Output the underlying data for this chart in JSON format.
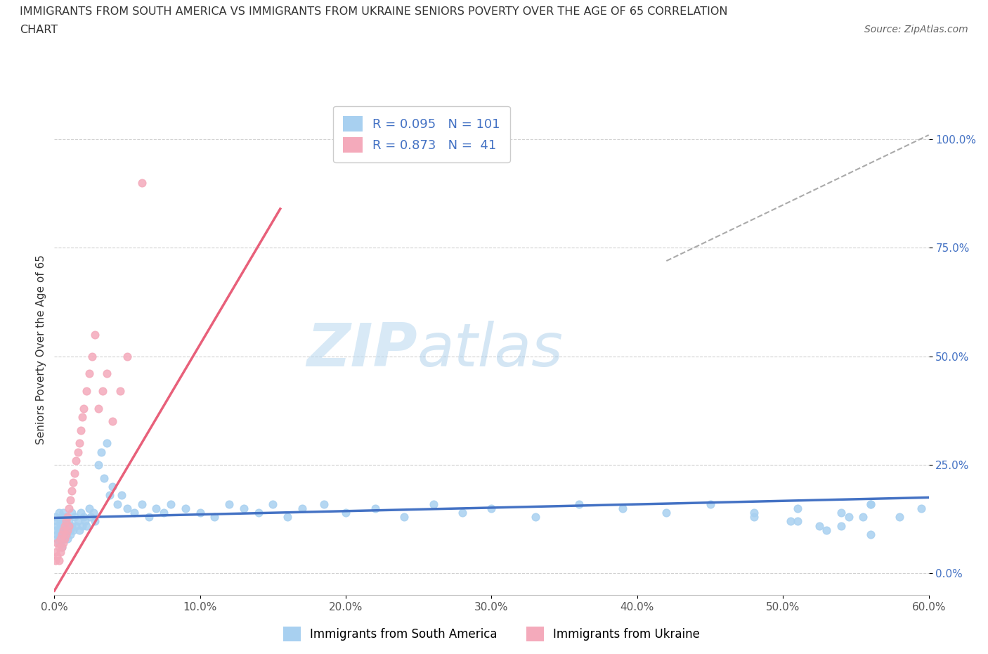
{
  "title_line1": "IMMIGRANTS FROM SOUTH AMERICA VS IMMIGRANTS FROM UKRAINE SENIORS POVERTY OVER THE AGE OF 65 CORRELATION",
  "title_line2": "CHART",
  "source": "Source: ZipAtlas.com",
  "ylabel": "Seniors Poverty Over the Age of 65",
  "xlim": [
    0.0,
    0.6
  ],
  "ylim": [
    -0.05,
    1.08
  ],
  "xticks": [
    0.0,
    0.1,
    0.2,
    0.3,
    0.4,
    0.5,
    0.6
  ],
  "xticklabels": [
    "0.0%",
    "10.0%",
    "20.0%",
    "30.0%",
    "40.0%",
    "50.0%",
    "60.0%"
  ],
  "yticks": [
    0.0,
    0.25,
    0.5,
    0.75,
    1.0
  ],
  "yticklabels": [
    "0.0%",
    "25.0%",
    "50.0%",
    "75.0%",
    "100.0%"
  ],
  "blue_scatter_color": "#A8D0F0",
  "pink_scatter_color": "#F4AABB",
  "blue_line_color": "#4472C4",
  "pink_line_color": "#E8607A",
  "legend_text_color": "#4472C4",
  "blue_R": 0.095,
  "blue_N": 101,
  "pink_R": 0.873,
  "pink_N": 41,
  "watermark_zip": "ZIP",
  "watermark_atlas": "atlas",
  "background_color": "#ffffff",
  "grid_color": "#cccccc",
  "sa_x": [
    0.001,
    0.001,
    0.002,
    0.002,
    0.002,
    0.002,
    0.003,
    0.003,
    0.003,
    0.003,
    0.004,
    0.004,
    0.004,
    0.004,
    0.005,
    0.005,
    0.005,
    0.005,
    0.006,
    0.006,
    0.006,
    0.007,
    0.007,
    0.007,
    0.008,
    0.008,
    0.008,
    0.009,
    0.009,
    0.01,
    0.01,
    0.011,
    0.011,
    0.012,
    0.012,
    0.013,
    0.014,
    0.015,
    0.016,
    0.017,
    0.018,
    0.019,
    0.02,
    0.021,
    0.022,
    0.024,
    0.025,
    0.027,
    0.028,
    0.03,
    0.032,
    0.034,
    0.036,
    0.038,
    0.04,
    0.043,
    0.046,
    0.05,
    0.055,
    0.06,
    0.065,
    0.07,
    0.075,
    0.08,
    0.09,
    0.1,
    0.11,
    0.12,
    0.13,
    0.14,
    0.15,
    0.16,
    0.17,
    0.185,
    0.2,
    0.22,
    0.24,
    0.26,
    0.28,
    0.3,
    0.33,
    0.36,
    0.39,
    0.42,
    0.45,
    0.48,
    0.51,
    0.54,
    0.56,
    0.58,
    0.595,
    0.54,
    0.56,
    0.48,
    0.51,
    0.53,
    0.555,
    0.505,
    0.525,
    0.545,
    0.56
  ],
  "sa_y": [
    0.13,
    0.1,
    0.11,
    0.09,
    0.12,
    0.08,
    0.14,
    0.1,
    0.08,
    0.07,
    0.12,
    0.09,
    0.11,
    0.07,
    0.13,
    0.1,
    0.08,
    0.06,
    0.14,
    0.11,
    0.09,
    0.12,
    0.1,
    0.08,
    0.11,
    0.09,
    0.13,
    0.1,
    0.08,
    0.12,
    0.11,
    0.1,
    0.09,
    0.14,
    0.11,
    0.1,
    0.13,
    0.11,
    0.12,
    0.1,
    0.14,
    0.11,
    0.13,
    0.12,
    0.11,
    0.15,
    0.13,
    0.14,
    0.12,
    0.25,
    0.28,
    0.22,
    0.3,
    0.18,
    0.2,
    0.16,
    0.18,
    0.15,
    0.14,
    0.16,
    0.13,
    0.15,
    0.14,
    0.16,
    0.15,
    0.14,
    0.13,
    0.16,
    0.15,
    0.14,
    0.16,
    0.13,
    0.15,
    0.16,
    0.14,
    0.15,
    0.13,
    0.16,
    0.14,
    0.15,
    0.13,
    0.16,
    0.15,
    0.14,
    0.16,
    0.13,
    0.15,
    0.14,
    0.16,
    0.13,
    0.15,
    0.11,
    0.09,
    0.14,
    0.12,
    0.1,
    0.13,
    0.12,
    0.11,
    0.13,
    0.16
  ],
  "uk_x": [
    0.001,
    0.001,
    0.002,
    0.002,
    0.003,
    0.003,
    0.004,
    0.004,
    0.005,
    0.005,
    0.006,
    0.006,
    0.007,
    0.007,
    0.008,
    0.008,
    0.009,
    0.009,
    0.01,
    0.01,
    0.011,
    0.012,
    0.013,
    0.014,
    0.015,
    0.016,
    0.017,
    0.018,
    0.019,
    0.02,
    0.022,
    0.024,
    0.026,
    0.028,
    0.03,
    0.033,
    0.036,
    0.04,
    0.045,
    0.05,
    0.06
  ],
  "uk_y": [
    0.05,
    0.03,
    0.07,
    0.04,
    0.06,
    0.03,
    0.08,
    0.05,
    0.09,
    0.06,
    0.1,
    0.07,
    0.11,
    0.08,
    0.12,
    0.09,
    0.13,
    0.1,
    0.15,
    0.11,
    0.17,
    0.19,
    0.21,
    0.23,
    0.26,
    0.28,
    0.3,
    0.33,
    0.36,
    0.38,
    0.42,
    0.46,
    0.5,
    0.55,
    0.38,
    0.42,
    0.46,
    0.35,
    0.42,
    0.5,
    0.9
  ],
  "pink_line_x0": 0.0,
  "pink_line_y0": -0.04,
  "pink_line_x1": 0.155,
  "pink_line_y1": 0.84,
  "blue_line_x0": 0.0,
  "blue_line_y0": 0.128,
  "blue_line_x1": 0.6,
  "blue_line_y1": 0.175,
  "dash_line_x0": 0.42,
  "dash_line_y0": 0.72,
  "dash_line_x1": 0.6,
  "dash_line_y1": 1.01
}
